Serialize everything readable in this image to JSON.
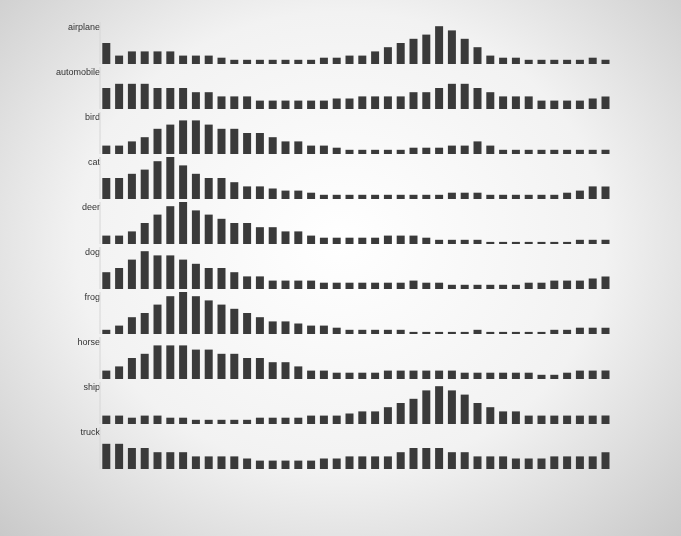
{
  "chart_data": [
    {
      "type": "bar",
      "title": "airplane",
      "color": "#3a3a3a",
      "ylim": [
        0,
        10
      ],
      "tick_labels": false,
      "values": [
        5,
        2,
        3,
        3,
        3,
        3,
        2,
        2,
        2,
        1.5,
        1,
        1,
        1,
        1,
        1,
        1,
        1,
        1.5,
        1.5,
        2,
        2,
        3,
        4,
        5,
        6,
        7,
        9,
        8,
        6,
        4,
        2,
        1.5,
        1.5,
        1,
        1,
        1,
        1,
        1,
        1.5,
        1
      ]
    },
    {
      "type": "bar",
      "title": "automobile",
      "color": "#3a3a3a",
      "ylim": [
        0,
        10
      ],
      "tick_labels": false,
      "values": [
        5,
        6,
        6,
        6,
        5,
        5,
        5,
        4,
        4,
        3,
        3,
        3,
        2,
        2,
        2,
        2,
        2,
        2,
        2.5,
        2.5,
        3,
        3,
        3,
        3,
        4,
        4,
        5,
        6,
        6,
        5,
        4,
        3,
        3,
        3,
        2,
        2,
        2,
        2,
        2.5,
        3
      ]
    },
    {
      "type": "bar",
      "title": "bird",
      "color": "#3a3a3a",
      "ylim": [
        0,
        10
      ],
      "tick_labels": false,
      "values": [
        2,
        2,
        3,
        4,
        6,
        7,
        8,
        8,
        7,
        6,
        6,
        5,
        5,
        4,
        3,
        3,
        2,
        2,
        1.5,
        1,
        1,
        1,
        1,
        1,
        1.5,
        1.5,
        1.5,
        2,
        2,
        3,
        2,
        1,
        1,
        1,
        1,
        1,
        1,
        1,
        1,
        1
      ]
    },
    {
      "type": "bar",
      "title": "cat",
      "color": "#3a3a3a",
      "ylim": [
        0,
        10
      ],
      "tick_labels": false,
      "values": [
        5,
        5,
        6,
        7,
        9,
        10,
        8,
        6,
        5,
        5,
        4,
        3,
        3,
        2.5,
        2,
        2,
        1.5,
        1,
        1,
        1,
        1,
        1,
        1,
        1,
        1,
        1,
        1,
        1.5,
        1.5,
        1.5,
        1,
        1,
        1,
        1,
        1,
        1,
        1.5,
        2,
        3,
        3
      ]
    },
    {
      "type": "bar",
      "title": "deer",
      "color": "#3a3a3a",
      "ylim": [
        0,
        10
      ],
      "tick_labels": false,
      "values": [
        2,
        2,
        3,
        5,
        7,
        9,
        10,
        8,
        7,
        6,
        5,
        5,
        4,
        4,
        3,
        3,
        2,
        1.5,
        1.5,
        1.5,
        1.5,
        1.5,
        2,
        2,
        2,
        1.5,
        1,
        1,
        1,
        1,
        0.5,
        0.5,
        0.5,
        0.5,
        0.5,
        0.5,
        0.5,
        1,
        1,
        1
      ]
    },
    {
      "type": "bar",
      "title": "dog",
      "color": "#3a3a3a",
      "ylim": [
        0,
        10
      ],
      "tick_labels": false,
      "values": [
        4,
        5,
        7,
        9,
        8,
        8,
        7,
        6,
        5,
        5,
        4,
        3,
        3,
        2,
        2,
        2,
        2,
        1.5,
        1.5,
        1.5,
        1.5,
        1.5,
        1.5,
        1.5,
        2,
        1.5,
        1.5,
        1,
        1,
        1,
        1,
        1,
        1,
        1.5,
        1.5,
        2,
        2,
        2,
        2.5,
        3
      ]
    },
    {
      "type": "bar",
      "title": "frog",
      "color": "#3a3a3a",
      "ylim": [
        0,
        10
      ],
      "tick_labels": false,
      "values": [
        1,
        2,
        4,
        5,
        7,
        9,
        10,
        9,
        8,
        7,
        6,
        5,
        4,
        3,
        3,
        2.5,
        2,
        2,
        1.5,
        1,
        1,
        1,
        1,
        1,
        0.5,
        0.5,
        0.5,
        0.5,
        0.5,
        1,
        0.5,
        0.5,
        0.5,
        0.5,
        0.5,
        1,
        1,
        1.5,
        1.5,
        1.5
      ]
    },
    {
      "type": "bar",
      "title": "horse",
      "color": "#3a3a3a",
      "ylim": [
        0,
        10
      ],
      "tick_labels": false,
      "values": [
        2,
        3,
        5,
        6,
        8,
        8,
        8,
        7,
        7,
        6,
        6,
        5,
        5,
        4,
        4,
        3,
        2,
        2,
        1.5,
        1.5,
        1.5,
        1.5,
        2,
        2,
        2,
        2,
        2,
        2,
        1.5,
        1.5,
        1.5,
        1.5,
        1.5,
        1.5,
        1,
        1,
        1.5,
        2,
        2,
        2
      ]
    },
    {
      "type": "bar",
      "title": "ship",
      "color": "#3a3a3a",
      "ylim": [
        0,
        10
      ],
      "tick_labels": false,
      "values": [
        2,
        2,
        1.5,
        2,
        2,
        1.5,
        1.5,
        1,
        1,
        1,
        1,
        1,
        1.5,
        1.5,
        1.5,
        1.5,
        2,
        2,
        2,
        2.5,
        3,
        3,
        4,
        5,
        6,
        8,
        9,
        8,
        7,
        5,
        4,
        3,
        3,
        2,
        2,
        2,
        2,
        2,
        2,
        2
      ]
    },
    {
      "type": "bar",
      "title": "truck",
      "color": "#3a3a3a",
      "ylim": [
        0,
        10
      ],
      "tick_labels": false,
      "values": [
        6,
        6,
        5,
        5,
        4,
        4,
        4,
        3,
        3,
        3,
        3,
        2.5,
        2,
        2,
        2,
        2,
        2,
        2.5,
        2.5,
        3,
        3,
        3,
        3,
        4,
        5,
        5,
        5,
        4,
        4,
        3,
        3,
        3,
        2.5,
        2.5,
        2.5,
        3,
        3,
        3,
        3,
        4
      ]
    }
  ]
}
